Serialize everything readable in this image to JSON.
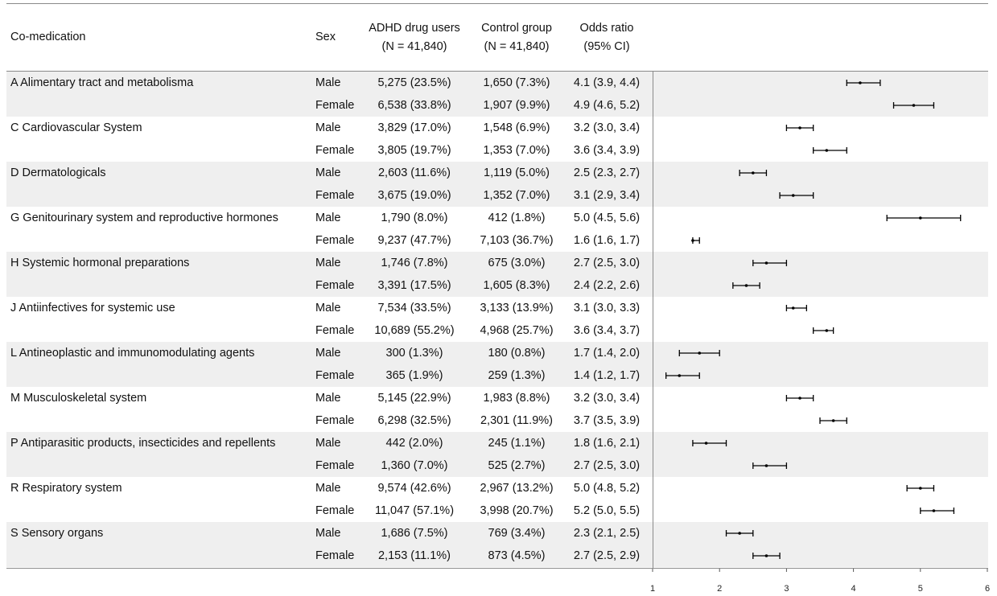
{
  "headers": {
    "co_medication": "Co-medication",
    "sex": "Sex",
    "users_line1": "ADHD drug users",
    "users_line2": "(N = 41,840)",
    "control_line1": "Control group",
    "control_line2": "(N = 41,840)",
    "or_line1": "Odds ratio",
    "or_line2": "(95% CI)"
  },
  "rows": [
    {
      "group": "A Alimentary tract and metabolisma",
      "sex": "Male",
      "users": "5,275 (23.5%)",
      "control": "1,650 (7.3%)",
      "or_text": "4.1 (3.9, 4.4)"
    },
    {
      "group": "",
      "sex": "Female",
      "users": "6,538 (33.8%)",
      "control": "1,907 (9.9%)",
      "or_text": "4.9 (4.6, 5.2)"
    },
    {
      "group": "C Cardiovascular System",
      "sex": "Male",
      "users": "3,829 (17.0%)",
      "control": "1,548 (6.9%)",
      "or_text": "3.2 (3.0, 3.4)"
    },
    {
      "group": "",
      "sex": "Female",
      "users": "3,805 (19.7%)",
      "control": "1,353 (7.0%)",
      "or_text": "3.6 (3.4, 3.9)"
    },
    {
      "group": "D Dermatologicals",
      "sex": "Male",
      "users": "2,603 (11.6%)",
      "control": "1,119 (5.0%)",
      "or_text": "2.5 (2.3, 2.7)"
    },
    {
      "group": "",
      "sex": "Female",
      "users": "3,675 (19.0%)",
      "control": "1,352 (7.0%)",
      "or_text": "3.1 (2.9, 3.4)"
    },
    {
      "group": "G Genitourinary system and reproductive hormones",
      "sex": "Male",
      "users": "1,790 (8.0%)",
      "control": "412 (1.8%)",
      "or_text": "5.0 (4.5, 5.6)"
    },
    {
      "group": "",
      "sex": "Female",
      "users": "9,237 (47.7%)",
      "control": "7,103 (36.7%)",
      "or_text": "1.6 (1.6, 1.7)"
    },
    {
      "group": "H Systemic hormonal preparations",
      "sex": "Male",
      "users": "1,746 (7.8%)",
      "control": "675 (3.0%)",
      "or_text": "2.7 (2.5, 3.0)"
    },
    {
      "group": "",
      "sex": "Female",
      "users": "3,391 (17.5%)",
      "control": "1,605 (8.3%)",
      "or_text": "2.4 (2.2, 2.6)"
    },
    {
      "group": "J Antiinfectives for systemic use",
      "sex": "Male",
      "users": "7,534 (33.5%)",
      "control": "3,133 (13.9%)",
      "or_text": "3.1 (3.0, 3.3)"
    },
    {
      "group": "",
      "sex": "Female",
      "users": "10,689 (55.2%)",
      "control": "4,968 (25.7%)",
      "or_text": "3.6 (3.4, 3.7)"
    },
    {
      "group": "L Antineoplastic and immunomodulating agents",
      "sex": "Male",
      "users": "300 (1.3%)",
      "control": "180 (0.8%)",
      "or_text": "1.7 (1.4, 2.0)"
    },
    {
      "group": "",
      "sex": "Female",
      "users": "365 (1.9%)",
      "control": "259 (1.3%)",
      "or_text": "1.4 (1.2, 1.7)"
    },
    {
      "group": "M Musculoskeletal system",
      "sex": "Male",
      "users": "5,145 (22.9%)",
      "control": "1,983 (8.8%)",
      "or_text": "3.2 (3.0, 3.4)"
    },
    {
      "group": "",
      "sex": "Female",
      "users": "6,298 (32.5%)",
      "control": "2,301 (11.9%)",
      "or_text": "3.7 (3.5, 3.9)"
    },
    {
      "group": "P Antiparasitic products, insecticides and repellents",
      "sex": "Male",
      "users": "442 (2.0%)",
      "control": "245 (1.1%)",
      "or_text": "1.8 (1.6, 2.1)"
    },
    {
      "group": "",
      "sex": "Female",
      "users": "1,360 (7.0%)",
      "control": "525 (2.7%)",
      "or_text": "2.7 (2.5, 3.0)"
    },
    {
      "group": "R Respiratory system",
      "sex": "Male",
      "users": "9,574 (42.6%)",
      "control": "2,967 (13.2%)",
      "or_text": "5.0 (4.8, 5.2)"
    },
    {
      "group": "",
      "sex": "Female",
      "users": "11,047 (57.1%)",
      "control": "3,998 (20.7%)",
      "or_text": "5.2 (5.0, 5.5)"
    },
    {
      "group": "S Sensory organs",
      "sex": "Male",
      "users": "1,686 (7.5%)",
      "control": "769 (3.4%)",
      "or_text": "2.3 (2.1, 2.5)"
    },
    {
      "group": "",
      "sex": "Female",
      "users": "2,153 (11.1%)",
      "control": "873 (4.5%)",
      "or_text": "2.7 (2.5, 2.9)"
    }
  ],
  "chart_data": {
    "type": "forest",
    "xlim": [
      1,
      6
    ],
    "x_ticks": [
      1,
      2,
      3,
      4,
      5,
      6
    ],
    "grid": false,
    "banding": "alternating gray by co-medication group",
    "series": [
      {
        "values": [
          {
            "label": "A Male",
            "or": 4.1,
            "low": 3.9,
            "high": 4.4
          },
          {
            "label": "A Female",
            "or": 4.9,
            "low": 4.6,
            "high": 5.2
          },
          {
            "label": "C Male",
            "or": 3.2,
            "low": 3.0,
            "high": 3.4
          },
          {
            "label": "C Female",
            "or": 3.6,
            "low": 3.4,
            "high": 3.9
          },
          {
            "label": "D Male",
            "or": 2.5,
            "low": 2.3,
            "high": 2.7
          },
          {
            "label": "D Female",
            "or": 3.1,
            "low": 2.9,
            "high": 3.4
          },
          {
            "label": "G Male",
            "or": 5.0,
            "low": 4.5,
            "high": 5.6
          },
          {
            "label": "G Female",
            "or": 1.6,
            "low": 1.6,
            "high": 1.7
          },
          {
            "label": "H Male",
            "or": 2.7,
            "low": 2.5,
            "high": 3.0
          },
          {
            "label": "H Female",
            "or": 2.4,
            "low": 2.2,
            "high": 2.6
          },
          {
            "label": "J Male",
            "or": 3.1,
            "low": 3.0,
            "high": 3.3
          },
          {
            "label": "J Female",
            "or": 3.6,
            "low": 3.4,
            "high": 3.7
          },
          {
            "label": "L Male",
            "or": 1.7,
            "low": 1.4,
            "high": 2.0
          },
          {
            "label": "L Female",
            "or": 1.4,
            "low": 1.2,
            "high": 1.7
          },
          {
            "label": "M Male",
            "or": 3.2,
            "low": 3.0,
            "high": 3.4
          },
          {
            "label": "M Female",
            "or": 3.7,
            "low": 3.5,
            "high": 3.9
          },
          {
            "label": "P Male",
            "or": 1.8,
            "low": 1.6,
            "high": 2.1
          },
          {
            "label": "P Female",
            "or": 2.7,
            "low": 2.5,
            "high": 3.0
          },
          {
            "label": "R Male",
            "or": 5.0,
            "low": 4.8,
            "high": 5.2
          },
          {
            "label": "R Female",
            "or": 5.2,
            "low": 5.0,
            "high": 5.5
          },
          {
            "label": "S Male",
            "or": 2.3,
            "low": 2.1,
            "high": 2.5
          },
          {
            "label": "S Female",
            "or": 2.7,
            "low": 2.5,
            "high": 2.9
          }
        ]
      }
    ],
    "colors": {
      "band": "#efefef",
      "marks": "#000000",
      "rule": "#8a8a8a"
    }
  }
}
